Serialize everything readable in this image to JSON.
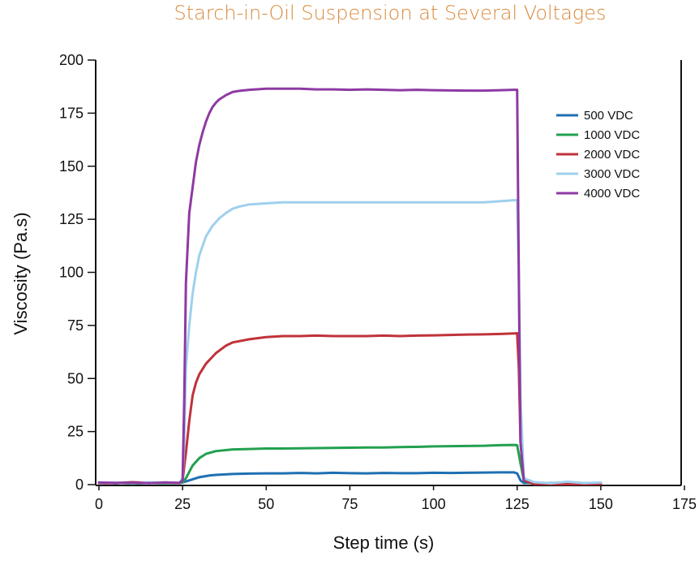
{
  "chart_data": {
    "type": "line",
    "title": "Starch-in-Oil Suspension at Several Voltages",
    "xlabel": "Step time (s)",
    "ylabel": "Viscosity (Pa.s)",
    "xlim": [
      0,
      175
    ],
    "ylim": [
      0,
      200
    ],
    "x_ticks": [
      0,
      25,
      50,
      75,
      100,
      125,
      150,
      175
    ],
    "y_ticks": [
      0,
      25,
      50,
      75,
      100,
      125,
      150,
      175,
      200
    ],
    "x_tick_labels": [
      "0",
      "25",
      "50",
      "75",
      "100",
      "125",
      "150",
      "175"
    ],
    "y_tick_labels": [
      "0",
      "25",
      "50",
      "75",
      "100",
      "125",
      "150",
      "175",
      "200"
    ],
    "grid": false,
    "legend_position": "top-right",
    "series": [
      {
        "name": "500 VDC",
        "color": "#1f6fb2",
        "x": [
          0,
          5,
          10,
          15,
          20,
          24,
          25,
          26,
          28,
          30,
          33,
          35,
          40,
          45,
          50,
          55,
          60,
          65,
          70,
          75,
          80,
          85,
          90,
          95,
          100,
          105,
          110,
          115,
          120,
          124,
          125,
          126,
          127,
          130,
          135,
          140,
          145,
          150
        ],
        "y": [
          1,
          0.6,
          1.1,
          0.7,
          1,
          0.8,
          1,
          1.5,
          2.5,
          3.5,
          4.3,
          4.6,
          5,
          5.2,
          5.3,
          5.3,
          5.5,
          5.3,
          5.6,
          5.4,
          5.3,
          5.5,
          5.4,
          5.4,
          5.6,
          5.5,
          5.6,
          5.7,
          5.8,
          5.8,
          5.3,
          2,
          0.8,
          0.9,
          0.7,
          1.1,
          0.7,
          0.8
        ]
      },
      {
        "name": "1000 VDC",
        "color": "#22a050",
        "x": [
          0,
          5,
          10,
          15,
          20,
          24,
          25,
          26,
          27,
          28,
          30,
          32,
          35,
          40,
          45,
          50,
          55,
          60,
          65,
          70,
          75,
          80,
          85,
          90,
          95,
          100,
          105,
          110,
          115,
          120,
          124,
          125,
          126,
          127,
          130,
          140,
          150
        ],
        "y": [
          0.6,
          0.9,
          0.5,
          0.8,
          0.6,
          0.7,
          1,
          3,
          6,
          9,
          12.5,
          14.5,
          15.8,
          16.6,
          16.8,
          17,
          17,
          17.1,
          17.2,
          17.3,
          17.4,
          17.5,
          17.5,
          17.7,
          17.8,
          18,
          18.1,
          18.2,
          18.3,
          18.6,
          18.7,
          18.6,
          10,
          2,
          0.6,
          0.5,
          0.4
        ]
      },
      {
        "name": "2000 VDC",
        "color": "#c0323a",
        "x": [
          0,
          5,
          10,
          15,
          20,
          24,
          25,
          26,
          27,
          28,
          29,
          30,
          32,
          35,
          38,
          40,
          45,
          50,
          55,
          60,
          65,
          70,
          75,
          80,
          85,
          90,
          95,
          100,
          105,
          110,
          115,
          120,
          124,
          125,
          125.5,
          126,
          127,
          130,
          140,
          150
        ],
        "y": [
          0.5,
          0.8,
          1.1,
          0.9,
          1,
          0.7,
          2,
          15,
          30,
          42,
          48,
          52,
          57,
          62,
          65.5,
          67,
          68.5,
          69.5,
          70,
          70,
          70.2,
          70,
          70,
          70,
          70.2,
          70,
          70.2,
          70.3,
          70.5,
          70.7,
          70.8,
          71,
          71.2,
          71.3,
          55,
          20,
          2,
          0.3,
          0.2,
          0.3
        ]
      },
      {
        "name": "3000 VDC",
        "color": "#9fd0ee",
        "x": [
          0,
          5,
          10,
          15,
          20,
          24,
          25,
          25.5,
          26,
          27,
          28,
          29,
          30,
          32,
          34,
          36,
          38,
          40,
          42,
          45,
          50,
          55,
          60,
          65,
          70,
          75,
          80,
          85,
          90,
          95,
          100,
          105,
          110,
          115,
          120,
          124,
          125,
          125.5,
          126,
          127,
          130,
          135,
          140,
          145,
          150
        ],
        "y": [
          0.7,
          1,
          0.6,
          1.1,
          0.8,
          0.9,
          3,
          20,
          55,
          75,
          90,
          100,
          108,
          117,
          122,
          125.5,
          128,
          130,
          131,
          132,
          132.5,
          133,
          133,
          133,
          133,
          133,
          133,
          133,
          133,
          133,
          133,
          133,
          133,
          133,
          133.5,
          134,
          134,
          100,
          40,
          3,
          1.2,
          0.6,
          1.4,
          0.7,
          1
        ]
      },
      {
        "name": "4000 VDC",
        "color": "#8e3aa3",
        "x": [
          0,
          5,
          10,
          15,
          20,
          24,
          25,
          25.5,
          26,
          27,
          28,
          29,
          30,
          31,
          32,
          33,
          34,
          35,
          36,
          38,
          40,
          42,
          45,
          50,
          55,
          60,
          65,
          70,
          75,
          80,
          85,
          90,
          95,
          100,
          105,
          110,
          115,
          120,
          124,
          125,
          125.2,
          125.6,
          126,
          127
        ],
        "y": [
          1,
          0.8,
          0.9,
          0.7,
          1,
          0.8,
          2,
          40,
          95,
          128,
          140,
          152,
          160,
          166,
          171,
          175,
          178,
          180,
          181.5,
          183.5,
          185,
          185.5,
          186,
          186.5,
          186.5,
          186.5,
          186.2,
          186.2,
          186,
          186.2,
          186,
          185.8,
          186,
          185.8,
          185.7,
          185.6,
          185.6,
          185.8,
          186,
          186,
          150,
          80,
          20,
          2
        ]
      }
    ]
  }
}
